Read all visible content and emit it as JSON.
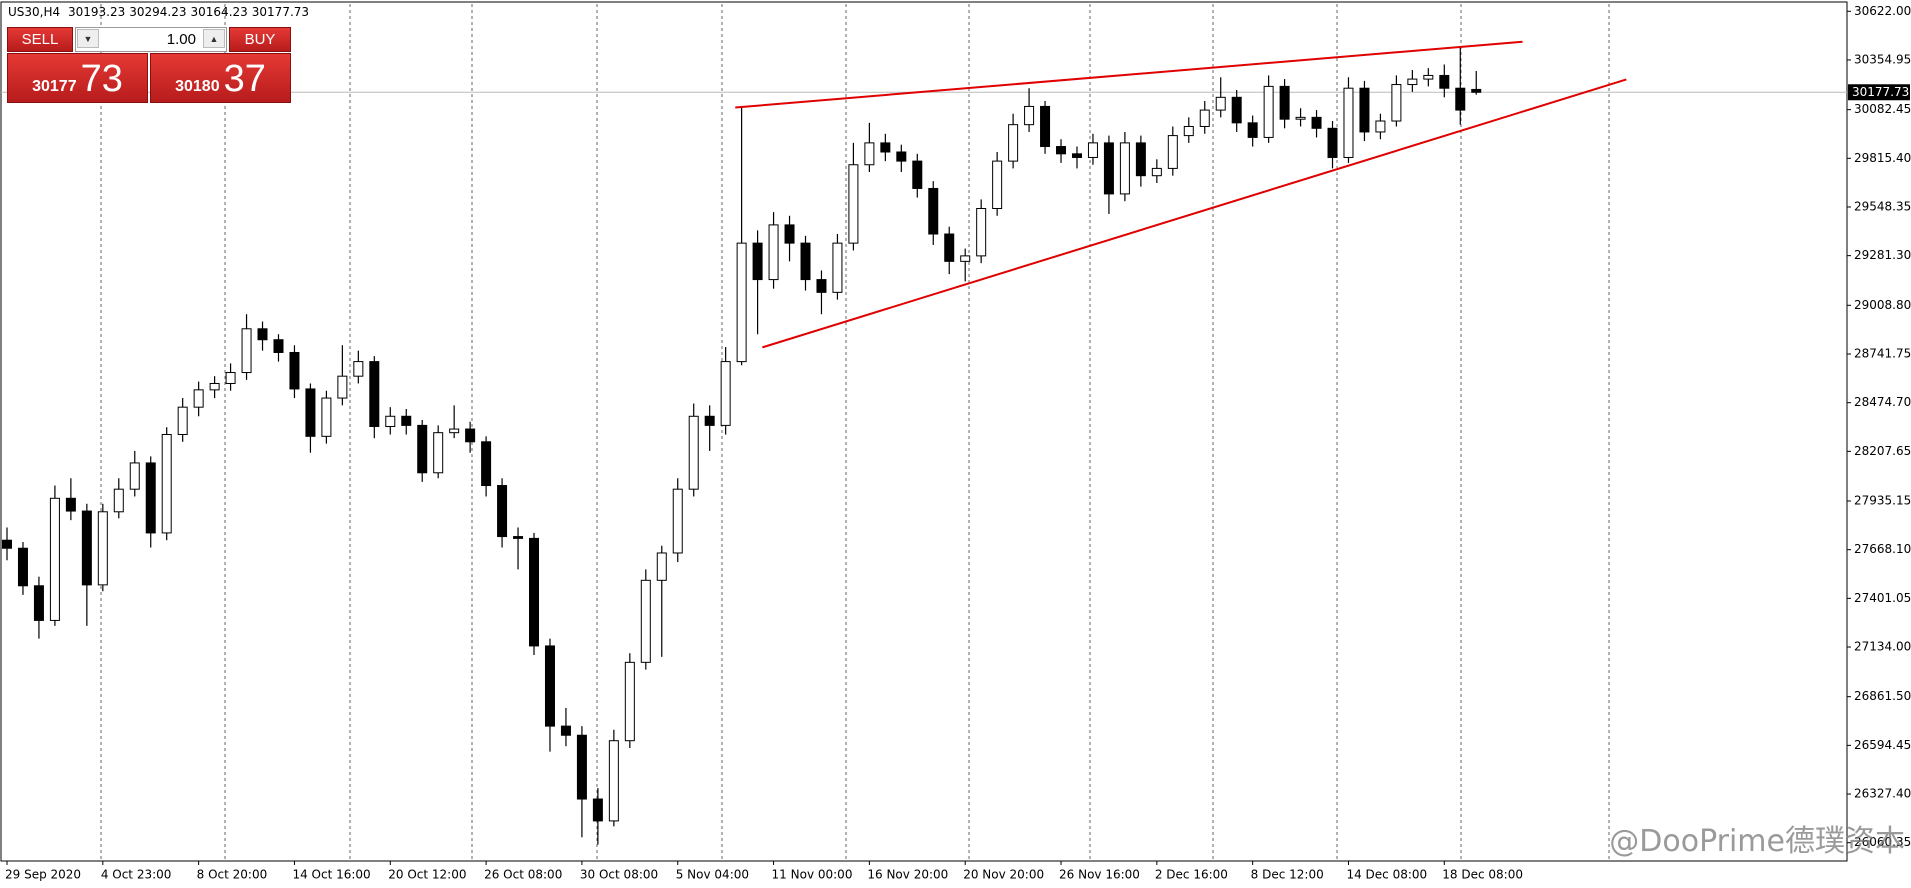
{
  "chart_data": {
    "type": "candlestick",
    "symbol": "US30,H4",
    "categories": [
      "29 Sep 2020",
      null,
      null,
      null,
      null,
      null,
      "4 Oct 23:00",
      null,
      null,
      null,
      null,
      null,
      "8 Oct 20:00",
      null,
      null,
      null,
      null,
      null,
      "14 Oct 16:00",
      null,
      null,
      null,
      null,
      null,
      "20 Oct 12:00",
      null,
      null,
      null,
      null,
      null,
      "26 Oct 08:00",
      null,
      null,
      null,
      null,
      null,
      "30 Oct 08:00",
      null,
      null,
      null,
      null,
      null,
      "5 Nov 04:00",
      null,
      null,
      null,
      null,
      null,
      "11 Nov 00:00",
      null,
      null,
      null,
      null,
      null,
      "16 Nov 20:00",
      null,
      null,
      null,
      null,
      null,
      "20 Nov 20:00",
      null,
      null,
      null,
      null,
      null,
      "26 Nov 16:00",
      null,
      null,
      null,
      null,
      null,
      "2 Dec 16:00",
      null,
      null,
      null,
      null,
      null,
      "8 Dec 12:00",
      null,
      null,
      null,
      null,
      null,
      "14 Dec 08:00",
      null,
      null,
      null,
      null,
      null,
      "18 Dec 08:00",
      null,
      null
    ],
    "open": [
      27720,
      27676,
      27470,
      27280,
      27950,
      27880,
      27475,
      27876,
      28000,
      28144,
      27760,
      28300,
      28450,
      28545,
      28580,
      28640,
      28880,
      28820,
      28750,
      28550,
      28290,
      28500,
      28620,
      28700,
      28344,
      28400,
      28350,
      28090,
      28310,
      28330,
      28260,
      28020,
      27740,
      27730,
      27140,
      26700,
      26650,
      26300,
      26180,
      26620,
      27050,
      27500,
      27650,
      28000,
      28400,
      28350,
      28700,
      29350,
      29150,
      29450,
      29350,
      29150,
      29080,
      29350,
      29780,
      29900,
      29850,
      29800,
      29650,
      29400,
      29250,
      29280,
      29540,
      29800,
      30000,
      30100,
      29880,
      29840,
      29820,
      29900,
      29620,
      29900,
      29720,
      29760,
      29940,
      29990,
      30080,
      30150,
      30010,
      29930,
      30210,
      30030,
      30040,
      29980,
      29820,
      30200,
      29960,
      30020,
      30220,
      30250,
      30270,
      30200,
      30193.23
    ],
    "high": [
      27790,
      27710,
      27520,
      28020,
      28060,
      27920,
      27920,
      28060,
      28210,
      28180,
      28340,
      28500,
      28590,
      28620,
      28690,
      28960,
      28920,
      28850,
      28790,
      28580,
      28540,
      28790,
      28760,
      28730,
      28450,
      28440,
      28380,
      28350,
      28460,
      28370,
      28290,
      28060,
      27790,
      27760,
      27180,
      26800,
      26700,
      26360,
      26680,
      27100,
      27560,
      27690,
      28060,
      28470,
      28460,
      28780,
      30094,
      29420,
      29520,
      29500,
      29390,
      29200,
      29400,
      29900,
      30010,
      29950,
      29890,
      29840,
      29690,
      29440,
      29320,
      29590,
      29850,
      30060,
      30200,
      30130,
      29920,
      29880,
      29950,
      29940,
      29960,
      29940,
      29810,
      29990,
      30040,
      30130,
      30260,
      30190,
      30050,
      30270,
      30250,
      30090,
      30080,
      30020,
      30260,
      30240,
      30060,
      30270,
      30300,
      30310,
      30330,
      30428,
      30294.23
    ],
    "low": [
      27610,
      27420,
      27180,
      27250,
      27830,
      27250,
      27440,
      27840,
      27960,
      27680,
      27720,
      28260,
      28400,
      28500,
      28540,
      28600,
      28760,
      28700,
      28500,
      28200,
      28250,
      28460,
      28580,
      28280,
      28300,
      28300,
      28040,
      28060,
      28280,
      28200,
      27960,
      27680,
      27560,
      27090,
      26560,
      26590,
      26090,
      26050,
      26150,
      26580,
      27010,
      27080,
      27600,
      27960,
      28210,
      28300,
      28680,
      28850,
      29100,
      29250,
      29090,
      28960,
      29040,
      29310,
      29740,
      29800,
      29740,
      29600,
      29340,
      29180,
      29140,
      29240,
      29500,
      29760,
      29960,
      29840,
      29790,
      29760,
      29780,
      29510,
      29580,
      29660,
      29680,
      29720,
      29900,
      29950,
      30040,
      29960,
      29880,
      29900,
      29980,
      29990,
      29930,
      29760,
      29790,
      29910,
      29920,
      29990,
      30180,
      30210,
      30150,
      30000,
      30164.23
    ],
    "close": [
      27676,
      27470,
      27280,
      27950,
      27880,
      27475,
      27876,
      28000,
      28144,
      27760,
      28300,
      28450,
      28545,
      28580,
      28640,
      28880,
      28820,
      28750,
      28550,
      28290,
      28500,
      28620,
      28700,
      28344,
      28400,
      28350,
      28090,
      28310,
      28330,
      28260,
      28020,
      27740,
      27730,
      27140,
      26700,
      26650,
      26300,
      26180,
      26620,
      27050,
      27500,
      27650,
      28000,
      28400,
      28350,
      28700,
      29350,
      29150,
      29450,
      29350,
      29150,
      29080,
      29350,
      29780,
      29900,
      29850,
      29800,
      29650,
      29400,
      29250,
      29280,
      29540,
      29800,
      30000,
      30100,
      29880,
      29840,
      29820,
      29900,
      29620,
      29900,
      29720,
      29760,
      29940,
      29990,
      30080,
      30150,
      30010,
      29930,
      30210,
      30030,
      30040,
      29980,
      29820,
      30200,
      29960,
      30020,
      30220,
      30250,
      30270,
      30200,
      30080,
      30177.73
    ],
    "ylim": [
      25960,
      30662
    ],
    "yticks": [
      {
        "value": 30622,
        "label": "30622.00"
      },
      {
        "value": 30354.95,
        "label": "30354.95"
      },
      {
        "value": 30082.45,
        "label": "30082.45"
      },
      {
        "value": 29815.4,
        "label": "29815.40"
      },
      {
        "value": 29548.35,
        "label": "29548.35"
      },
      {
        "value": 29281.3,
        "label": "29281.30"
      },
      {
        "value": 29008.8,
        "label": "29008.80"
      },
      {
        "value": 28741.75,
        "label": "28741.75"
      },
      {
        "value": 28474.7,
        "label": "28474.70"
      },
      {
        "value": 28207.65,
        "label": "28207.65"
      },
      {
        "value": 27935.15,
        "label": "27935.15"
      },
      {
        "value": 27668.1,
        "label": "27668.10"
      },
      {
        "value": 27401.05,
        "label": "27401.05"
      },
      {
        "value": 27134,
        "label": "27134.00"
      },
      {
        "value": 26861.5,
        "label": "26861.50"
      },
      {
        "value": 26594.45,
        "label": "26594.45"
      },
      {
        "value": 26327.4,
        "label": "26327.40"
      },
      {
        "value": 26060.35,
        "label": "26060.35"
      }
    ],
    "trendlines": [
      {
        "x": [
          45.6,
          94.9
        ],
        "y": [
          30094,
          30455
        ]
      },
      {
        "x": [
          47.3,
          101.4
        ],
        "y": [
          28778,
          30248
        ]
      }
    ],
    "trendline_color": "#e00000",
    "up_color": "#ffffff",
    "down_color": "#000000"
  },
  "trade_panel": {
    "sell_label": "SELL",
    "buy_label": "BUY",
    "lot": "1.00",
    "sell_price_main": "30177",
    "sell_price_big": "73",
    "buy_price_main": "30180",
    "buy_price_big": "37"
  },
  "watermark": "@DooPrime德璞资本"
}
